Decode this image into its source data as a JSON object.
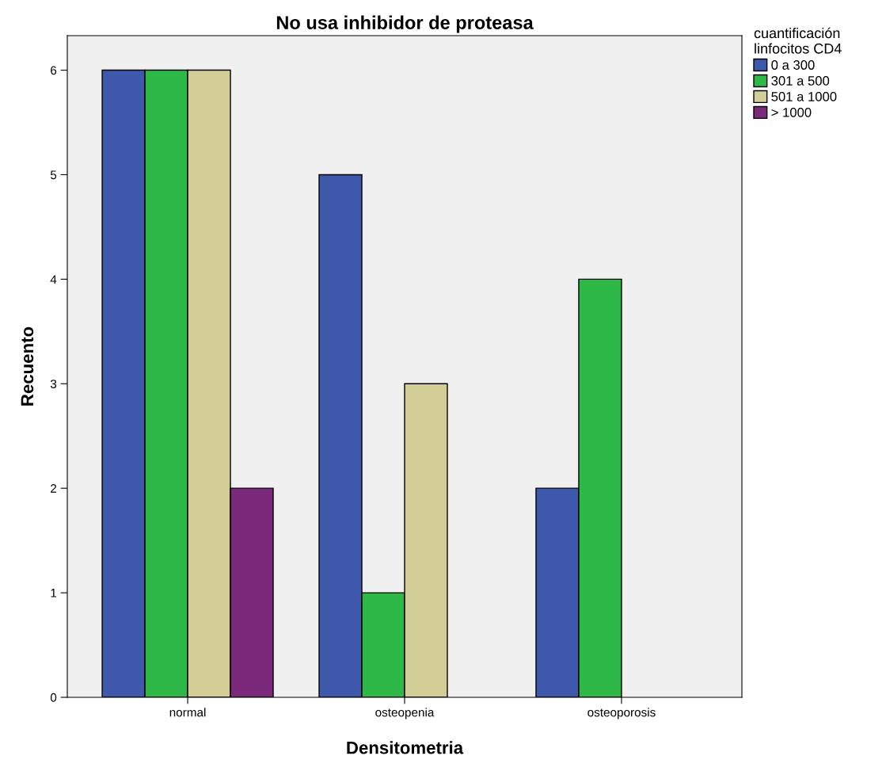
{
  "chart_data": {
    "type": "bar",
    "title": "No usa inhibidor de proteasa",
    "xlabel": "Densitometria",
    "ylabel": "Recuento",
    "legend_title": "cuantificación\nlinfocitos CD4",
    "categories": [
      "normal",
      "osteopenia",
      "osteoporosis"
    ],
    "series": [
      {
        "name": "0 a 300",
        "color": "#3e58ac",
        "values": [
          6,
          5,
          2
        ]
      },
      {
        "name": "301 a 500",
        "color": "#2eb848",
        "values": [
          6,
          1,
          4
        ]
      },
      {
        "name": "501 a 1000",
        "color": "#d3ce97",
        "values": [
          6,
          3,
          null
        ]
      },
      {
        "name": "> 1000",
        "color": "#7b2a7b",
        "values": [
          2,
          null,
          null
        ]
      }
    ],
    "ylim": [
      0,
      6.33
    ],
    "yticks": [
      0,
      1,
      2,
      3,
      4,
      5,
      6
    ],
    "grid": false,
    "legend": "top right"
  }
}
